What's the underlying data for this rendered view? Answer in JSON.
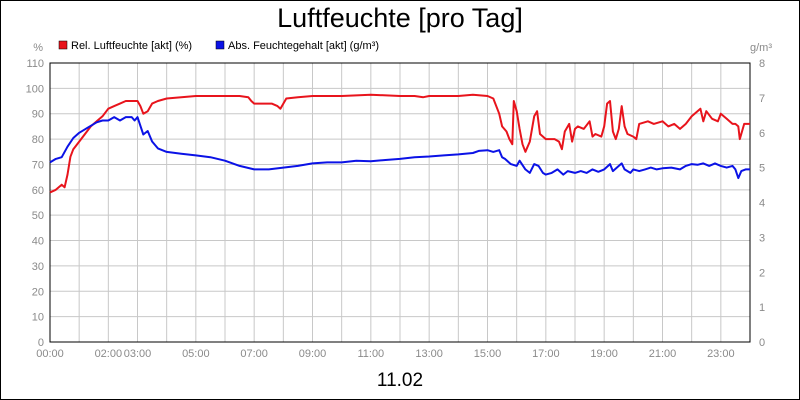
{
  "chart_data": {
    "type": "line",
    "title": "Luftfeuchte [pro Tag]",
    "date_label": "11.02",
    "y_left_unit": "%",
    "y_right_unit": "g/m³",
    "y_left_lim": [
      0,
      110
    ],
    "y_right_lim": [
      0,
      8
    ],
    "y_left_ticks": [
      "0",
      "10",
      "20",
      "30",
      "40",
      "50",
      "60",
      "70",
      "80",
      "90",
      "100",
      "110"
    ],
    "y_right_ticks": [
      "0",
      "1",
      "2",
      "3",
      "4",
      "5",
      "6",
      "7",
      "8"
    ],
    "x_lim_hours": [
      0,
      24
    ],
    "x_ticks": [
      {
        "h": 0,
        "label": "00:00"
      },
      {
        "h": 2,
        "label": "02:00"
      },
      {
        "h": 3,
        "label": "03:00"
      },
      {
        "h": 5,
        "label": "05:00"
      },
      {
        "h": 7,
        "label": "07:00"
      },
      {
        "h": 9,
        "label": "09:00"
      },
      {
        "h": 11,
        "label": "11:00"
      },
      {
        "h": 13,
        "label": "13:00"
      },
      {
        "h": 15,
        "label": "15:00"
      },
      {
        "h": 17,
        "label": "17:00"
      },
      {
        "h": 19,
        "label": "19:00"
      },
      {
        "h": 21,
        "label": "21:00"
      },
      {
        "h": 23,
        "label": "23:00"
      }
    ],
    "grid": true,
    "legend_position": "top-left",
    "series": [
      {
        "name": "Rel. Luftfeuchte [akt] (%)",
        "axis": "left",
        "color": "#e8141c",
        "points": [
          [
            0.0,
            59
          ],
          [
            0.2,
            60
          ],
          [
            0.4,
            62
          ],
          [
            0.5,
            61
          ],
          [
            0.6,
            66
          ],
          [
            0.7,
            73
          ],
          [
            0.8,
            76
          ],
          [
            1.0,
            79
          ],
          [
            1.2,
            82
          ],
          [
            1.4,
            85
          ],
          [
            1.6,
            87
          ],
          [
            1.8,
            89
          ],
          [
            2.0,
            92
          ],
          [
            2.2,
            93
          ],
          [
            2.4,
            94
          ],
          [
            2.6,
            95
          ],
          [
            2.8,
            95
          ],
          [
            3.0,
            95
          ],
          [
            3.1,
            93
          ],
          [
            3.2,
            90
          ],
          [
            3.35,
            91
          ],
          [
            3.5,
            94
          ],
          [
            3.7,
            95
          ],
          [
            4.0,
            96
          ],
          [
            4.5,
            96.5
          ],
          [
            5.0,
            97
          ],
          [
            5.5,
            97
          ],
          [
            6.0,
            97
          ],
          [
            6.5,
            97
          ],
          [
            6.8,
            96.5
          ],
          [
            6.9,
            95
          ],
          [
            7.0,
            94
          ],
          [
            7.3,
            94
          ],
          [
            7.6,
            94
          ],
          [
            7.8,
            93
          ],
          [
            7.9,
            92
          ],
          [
            8.1,
            96
          ],
          [
            8.5,
            96.5
          ],
          [
            9.0,
            97
          ],
          [
            10.0,
            97
          ],
          [
            11.0,
            97.5
          ],
          [
            12.0,
            97
          ],
          [
            12.5,
            97
          ],
          [
            12.8,
            96.5
          ],
          [
            13.0,
            97
          ],
          [
            14.0,
            97
          ],
          [
            14.5,
            97.5
          ],
          [
            15.0,
            97
          ],
          [
            15.2,
            96
          ],
          [
            15.4,
            90
          ],
          [
            15.5,
            85
          ],
          [
            15.65,
            83
          ],
          [
            15.75,
            80
          ],
          [
            15.85,
            78
          ],
          [
            15.9,
            95
          ],
          [
            16.0,
            91
          ],
          [
            16.1,
            84
          ],
          [
            16.2,
            78
          ],
          [
            16.3,
            75
          ],
          [
            16.45,
            79
          ],
          [
            16.6,
            89
          ],
          [
            16.7,
            91
          ],
          [
            16.8,
            82
          ],
          [
            17.0,
            80
          ],
          [
            17.1,
            80
          ],
          [
            17.3,
            80
          ],
          [
            17.45,
            79
          ],
          [
            17.55,
            76
          ],
          [
            17.65,
            83
          ],
          [
            17.8,
            86
          ],
          [
            17.9,
            79
          ],
          [
            18.0,
            84
          ],
          [
            18.1,
            85
          ],
          [
            18.3,
            84
          ],
          [
            18.5,
            87
          ],
          [
            18.6,
            81
          ],
          [
            18.7,
            82
          ],
          [
            18.9,
            81
          ],
          [
            19.0,
            85
          ],
          [
            19.1,
            94
          ],
          [
            19.2,
            95
          ],
          [
            19.3,
            83
          ],
          [
            19.4,
            80
          ],
          [
            19.5,
            84
          ],
          [
            19.6,
            93
          ],
          [
            19.7,
            85
          ],
          [
            19.8,
            82
          ],
          [
            20.0,
            81
          ],
          [
            20.1,
            80
          ],
          [
            20.2,
            86
          ],
          [
            20.5,
            87
          ],
          [
            20.7,
            86
          ],
          [
            21.0,
            87
          ],
          [
            21.2,
            85
          ],
          [
            21.4,
            86
          ],
          [
            21.6,
            84
          ],
          [
            21.8,
            86
          ],
          [
            22.0,
            89
          ],
          [
            22.2,
            91
          ],
          [
            22.3,
            92
          ],
          [
            22.4,
            87
          ],
          [
            22.5,
            91
          ],
          [
            22.7,
            88
          ],
          [
            22.9,
            87
          ],
          [
            23.0,
            90
          ],
          [
            23.2,
            88
          ],
          [
            23.4,
            86
          ],
          [
            23.5,
            86
          ],
          [
            23.6,
            85
          ],
          [
            23.65,
            80
          ],
          [
            23.8,
            86
          ],
          [
            24.0,
            86
          ]
        ]
      },
      {
        "name": "Abs. Feuchtegehalt [akt] (g/m³)",
        "axis": "right",
        "color": "#0b12e6",
        "points": [
          [
            0.0,
            5.15
          ],
          [
            0.2,
            5.25
          ],
          [
            0.4,
            5.3
          ],
          [
            0.6,
            5.6
          ],
          [
            0.8,
            5.85
          ],
          [
            1.0,
            6.0
          ],
          [
            1.2,
            6.1
          ],
          [
            1.4,
            6.2
          ],
          [
            1.6,
            6.3
          ],
          [
            1.8,
            6.35
          ],
          [
            2.0,
            6.35
          ],
          [
            2.2,
            6.45
          ],
          [
            2.4,
            6.35
          ],
          [
            2.6,
            6.45
          ],
          [
            2.8,
            6.45
          ],
          [
            2.9,
            6.35
          ],
          [
            3.0,
            6.45
          ],
          [
            3.1,
            6.2
          ],
          [
            3.2,
            5.95
          ],
          [
            3.35,
            6.05
          ],
          [
            3.5,
            5.75
          ],
          [
            3.7,
            5.55
          ],
          [
            4.0,
            5.45
          ],
          [
            4.5,
            5.4
          ],
          [
            5.0,
            5.35
          ],
          [
            5.5,
            5.3
          ],
          [
            6.0,
            5.2
          ],
          [
            6.5,
            5.05
          ],
          [
            7.0,
            4.95
          ],
          [
            7.5,
            4.95
          ],
          [
            8.0,
            5.0
          ],
          [
            8.5,
            5.05
          ],
          [
            9.0,
            5.12
          ],
          [
            9.5,
            5.15
          ],
          [
            10.0,
            5.15
          ],
          [
            10.5,
            5.2
          ],
          [
            11.0,
            5.18
          ],
          [
            11.5,
            5.22
          ],
          [
            12.0,
            5.25
          ],
          [
            12.5,
            5.3
          ],
          [
            13.0,
            5.32
          ],
          [
            13.5,
            5.35
          ],
          [
            14.0,
            5.38
          ],
          [
            14.5,
            5.42
          ],
          [
            14.7,
            5.48
          ],
          [
            15.0,
            5.5
          ],
          [
            15.2,
            5.45
          ],
          [
            15.4,
            5.5
          ],
          [
            15.5,
            5.3
          ],
          [
            15.6,
            5.25
          ],
          [
            15.8,
            5.1
          ],
          [
            16.0,
            5.05
          ],
          [
            16.1,
            5.2
          ],
          [
            16.3,
            4.95
          ],
          [
            16.45,
            4.85
          ],
          [
            16.6,
            5.1
          ],
          [
            16.75,
            5.05
          ],
          [
            16.9,
            4.85
          ],
          [
            17.0,
            4.8
          ],
          [
            17.2,
            4.85
          ],
          [
            17.4,
            4.95
          ],
          [
            17.6,
            4.8
          ],
          [
            17.75,
            4.9
          ],
          [
            18.0,
            4.85
          ],
          [
            18.2,
            4.9
          ],
          [
            18.4,
            4.85
          ],
          [
            18.6,
            4.95
          ],
          [
            18.8,
            4.88
          ],
          [
            19.0,
            4.95
          ],
          [
            19.2,
            5.1
          ],
          [
            19.3,
            4.9
          ],
          [
            19.5,
            5.05
          ],
          [
            19.6,
            5.12
          ],
          [
            19.7,
            4.95
          ],
          [
            19.9,
            4.85
          ],
          [
            20.0,
            4.95
          ],
          [
            20.2,
            4.9
          ],
          [
            20.4,
            4.95
          ],
          [
            20.6,
            5.0
          ],
          [
            20.8,
            4.95
          ],
          [
            21.0,
            4.98
          ],
          [
            21.3,
            5.0
          ],
          [
            21.6,
            4.95
          ],
          [
            21.8,
            5.05
          ],
          [
            22.0,
            5.1
          ],
          [
            22.2,
            5.08
          ],
          [
            22.4,
            5.12
          ],
          [
            22.6,
            5.05
          ],
          [
            22.8,
            5.12
          ],
          [
            23.0,
            5.05
          ],
          [
            23.2,
            5.0
          ],
          [
            23.4,
            5.05
          ],
          [
            23.5,
            4.95
          ],
          [
            23.6,
            4.7
          ],
          [
            23.7,
            4.9
          ],
          [
            23.85,
            4.95
          ],
          [
            24.0,
            4.95
          ]
        ]
      }
    ]
  }
}
